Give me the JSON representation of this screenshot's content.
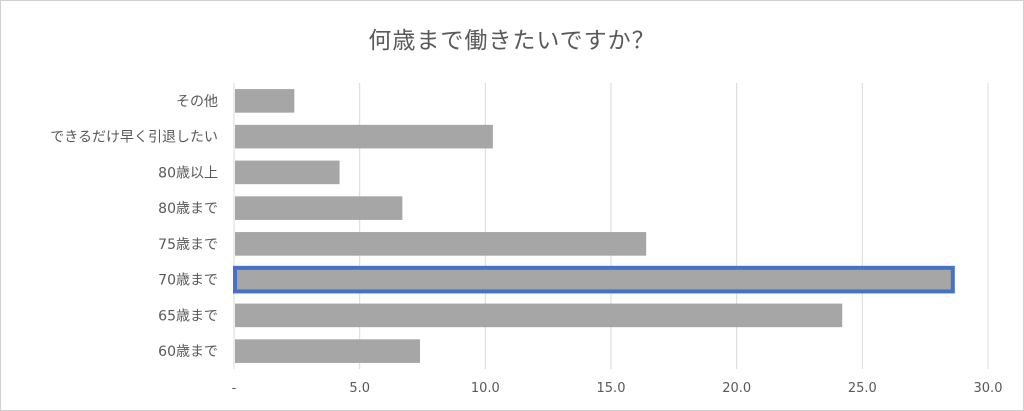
{
  "chart_data": {
    "type": "bar",
    "orientation": "horizontal",
    "title": "何歳まで働きたいですか？",
    "categories": [
      "その他",
      "できるだけ早く引退したい",
      "80歳以上",
      "80歳まで",
      "75歳まで",
      "70歳まで",
      "65歳まで",
      "60歳まで"
    ],
    "values": [
      2.4,
      10.3,
      4.2,
      6.7,
      16.4,
      28.6,
      24.2,
      7.4
    ],
    "highlighted_category": "70歳まで",
    "xlim": [
      0,
      30
    ],
    "xticks": [
      "-",
      "5.0",
      "10.0",
      "15.0",
      "20.0",
      "25.0",
      "30.0"
    ],
    "grid": true,
    "colors": {
      "bar": "#a6a6a6",
      "highlight_border": "#4472c4",
      "grid": "#d9d9d9",
      "text": "#595959"
    }
  }
}
